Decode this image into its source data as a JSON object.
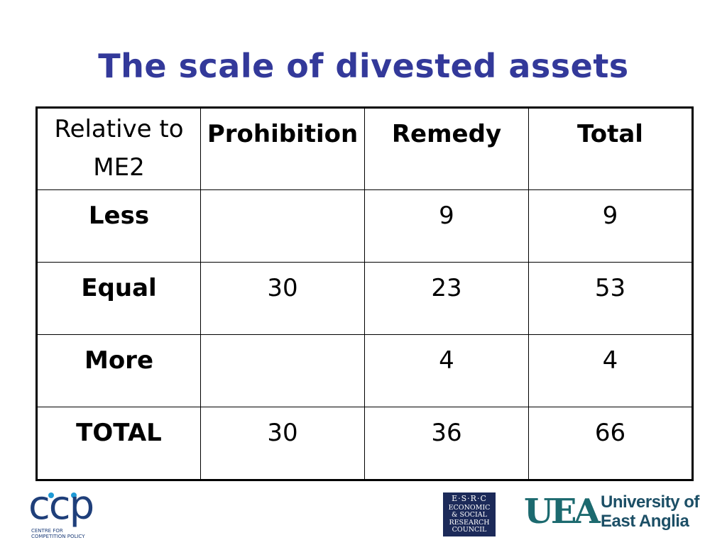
{
  "slide": {
    "title": "The scale of divested assets"
  },
  "table": {
    "header": [
      "Relative to ME2",
      "Prohibition",
      "Remedy",
      "Total"
    ],
    "rows": [
      [
        "Less",
        "",
        "9",
        "9"
      ],
      [
        "Equal",
        "30",
        "23",
        "53"
      ],
      [
        "More",
        "",
        "4",
        "4"
      ],
      [
        "TOTAL",
        "30",
        "36",
        "66"
      ]
    ]
  },
  "logos": {
    "ccp": {
      "letters": "ccp",
      "subtitle_line1": "CENTRE FOR",
      "subtitle_line2": "COMPETITION POLICY",
      "accent_color": "#1f9ad6"
    },
    "esrc": {
      "line1": "E·S·R·C",
      "line2": "ECONOMIC",
      "line3": "& SOCIAL",
      "line4": "RESEARCH",
      "line5": "COUNCIL"
    },
    "uea": {
      "mark": "UEA",
      "name_line1": "University of",
      "name_line2": "East Anglia"
    }
  },
  "colors": {
    "title": "#33399a",
    "ccp_blue": "#1f3f7a",
    "esrc_navy": "#1c2a59",
    "uea_teal": "#1c6a6f"
  }
}
